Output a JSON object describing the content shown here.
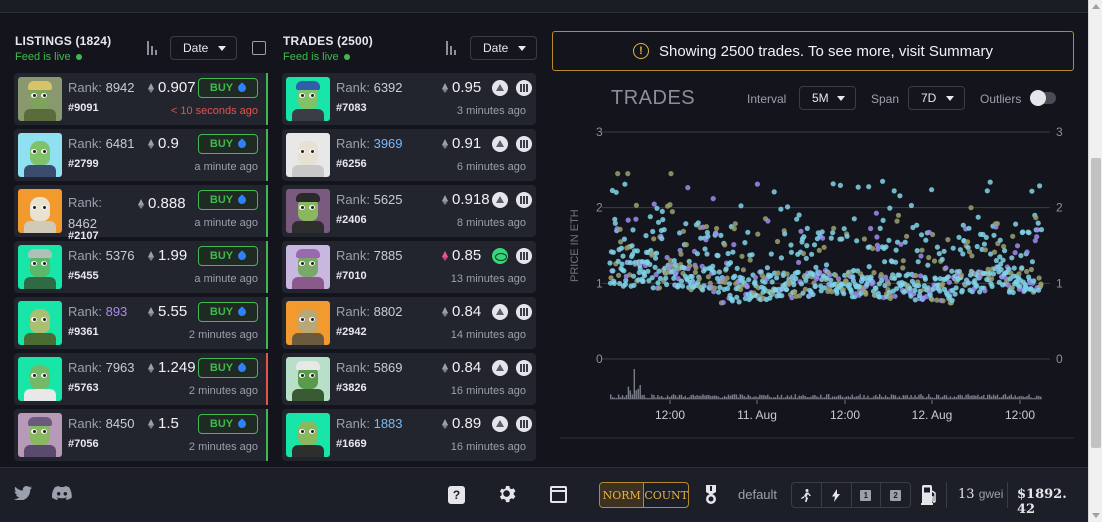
{
  "listings": {
    "title": "LISTINGS (1824)",
    "feed": "Feed is live",
    "sort": "Date",
    "items": [
      {
        "rank_label": "Rank:",
        "rank": "8942",
        "price": "0.907",
        "buy": "BUY",
        "id": "#9091",
        "time": "< 10 seconds ago",
        "time_red": true,
        "edge": "#3fb950",
        "bg": "#8a9870",
        "head": "#7fa25c",
        "body": "#5a6b3c",
        "hat": "#d8c26a"
      },
      {
        "rank_label": "Rank:",
        "rank": "6481",
        "price": "0.9",
        "buy": "BUY",
        "id": "#2799",
        "time": "a minute ago",
        "edge": "#3fb950",
        "bg": "#8fe0f0",
        "head": "#7fc26a",
        "body": "#3b4d6e",
        "hat": ""
      },
      {
        "rank_label": "Rank:",
        "rank": "8462",
        "price": "0.888",
        "buy": "BUY",
        "id": "#2107",
        "time": "a minute ago",
        "edge": "#3fb950",
        "bg": "#f29a2e",
        "head": "#e8e2d0",
        "body": "#d0cbb8",
        "hat": ""
      },
      {
        "rank_label": "Rank:",
        "rank": "5376",
        "price": "1.99",
        "buy": "BUY",
        "id": "#5455",
        "time": "a minute ago",
        "edge": "#3fb950",
        "bg": "#18e6a8",
        "head": "#5bb86a",
        "body": "#2e6b44",
        "hat": "#b0c0b8"
      },
      {
        "rank_label": "Rank:",
        "rank": "893",
        "rank_hl": "purple",
        "price": "5.55",
        "buy": "BUY",
        "id": "#9361",
        "time": "2 minutes ago",
        "edge": "#3fb950",
        "bg": "#18e6a8",
        "head": "#a8c070",
        "body": "#4a6b34",
        "hat": ""
      },
      {
        "rank_label": "Rank:",
        "rank": "7963",
        "price": "1.249",
        "buy": "BUY",
        "id": "#5763",
        "time": "2 minutes ago",
        "edge": "#e5534b",
        "bg": "#18e6a8",
        "head": "#74b868",
        "body": "#e8e8e8",
        "hat": ""
      },
      {
        "rank_label": "Rank:",
        "rank": "8450",
        "price": "1.5",
        "buy": "BUY",
        "id": "#7056",
        "time": "2 minutes ago",
        "edge": "#3fb950",
        "bg": "#b79ab8",
        "head": "#8ab860",
        "body": "#5a4a6e",
        "hat": "#6a5a7e"
      }
    ]
  },
  "trades": {
    "title": "TRADES (2500)",
    "feed": "Feed is live",
    "sort": "Date",
    "items": [
      {
        "rank_label": "Rank:",
        "rank": "6392",
        "price": "0.95",
        "id": "#7083",
        "time": "3 minutes ago",
        "bg": "#18e6a8",
        "head": "#7fc26a",
        "body": "#3a3d48",
        "hat": "#2f5fa8",
        "mkt": "os"
      },
      {
        "rank_label": "Rank:",
        "rank": "3969",
        "rank_hl": "blue",
        "price": "0.91",
        "id": "#6256",
        "time": "6 minutes ago",
        "bg": "#e8e8e8",
        "head": "#e8e0d0",
        "body": "#c8c8c8",
        "hat": "",
        "mkt": "os"
      },
      {
        "rank_label": "Rank:",
        "rank": "5625",
        "price": "0.918",
        "id": "#2406",
        "time": "8 minutes ago",
        "bg": "#7a5a7e",
        "head": "#8ab860",
        "body": "#2e2e2e",
        "hat": "#2a2a2a",
        "mkt": "os"
      },
      {
        "rank_label": "Rank:",
        "rank": "7885",
        "price": "0.85",
        "id": "#7010",
        "time": "13 minutes ago",
        "bg": "#c8b8e0",
        "head": "#7aa868",
        "body": "#8a5a8a",
        "hat": "#9a6ab0",
        "mkt": "eye",
        "pink": true
      },
      {
        "rank_label": "Rank:",
        "rank": "8802",
        "price": "0.84",
        "id": "#2942",
        "time": "14 minutes ago",
        "bg": "#f29a2e",
        "head": "#b8a878",
        "body": "#6a5a3e",
        "hat": "",
        "mkt": "os"
      },
      {
        "rank_label": "Rank:",
        "rank": "5869",
        "price": "0.84",
        "id": "#3826",
        "time": "16 minutes ago",
        "bg": "#b8e0c8",
        "head": "#5a9a4a",
        "body": "#3a5a34",
        "hat": "#e8e8e8",
        "mkt": "os"
      },
      {
        "rank_label": "Rank:",
        "rank": "1883",
        "rank_hl": "blue",
        "price": "0.89",
        "id": "#1669",
        "time": "16 minutes ago",
        "bg": "#18e6a8",
        "head": "#8ab860",
        "body": "#2e2e2e",
        "hat": "",
        "mkt": "os"
      }
    ]
  },
  "banner": {
    "text": "Showing 2500 trades. To see more, visit Summary",
    "icon": "warning-icon"
  },
  "chart_panel": {
    "title": "TRADES",
    "interval_label": "Interval",
    "interval": "5M",
    "span_label": "Span",
    "span": "7D",
    "outliers_label": "Outliers"
  },
  "chart_data": {
    "type": "scatter",
    "title": "TRADES",
    "ylabel": "PRICE IN ETH",
    "ylim": [
      0,
      3
    ],
    "yticks": [
      "0",
      "1",
      "2",
      "3"
    ],
    "xticks": [
      "12:00",
      "11. Aug",
      "12:00",
      "12. Aug",
      "12:00"
    ],
    "grid": true,
    "baseline": 1.0,
    "series_colors": [
      "#7fd4e8",
      "#9b8cf0",
      "#9aa070"
    ],
    "volume_panel": true
  },
  "footer": {
    "norm": "NORM",
    "count": "COUNT",
    "default_label": "default",
    "g1": "1",
    "g2": "2",
    "gwei_value": "13",
    "gwei_unit": "gwei",
    "eth_price": "$1892. 42"
  }
}
